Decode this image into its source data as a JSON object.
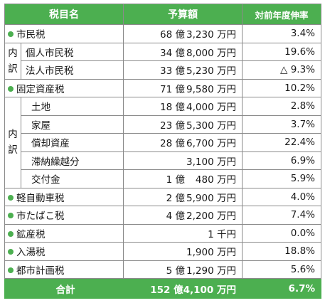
{
  "header": {
    "col_name": "税目名",
    "col_amount": "予算額",
    "col_rate": "対前年度伸率"
  },
  "inner_label": {
    "line1": "内",
    "line2": "訳"
  },
  "units": {
    "oku": "億",
    "man": "万円",
    "sen": "千円"
  },
  "rows": [
    {
      "name": "市民税",
      "oku": "68",
      "man": "3,230",
      "rate": "3.4%"
    },
    {
      "name": "個人市民税",
      "oku": "34",
      "man": "8,000",
      "rate": "19.6%"
    },
    {
      "name": "法人市民税",
      "oku": "33",
      "man": "5,230",
      "rate": "△ 9.3%"
    },
    {
      "name": "固定資産税",
      "oku": "71",
      "man": "9,580",
      "rate": "10.2%"
    },
    {
      "name": "土地",
      "oku": "18",
      "man": "4,000",
      "rate": "2.8%"
    },
    {
      "name": "家屋",
      "oku": "23",
      "man": "5,300",
      "rate": "3.7%"
    },
    {
      "name": "償却資産",
      "oku": "28",
      "man": "6,700",
      "rate": "22.4%"
    },
    {
      "name": "滞納繰越分",
      "oku": "",
      "man": "3,100",
      "rate": "6.9%"
    },
    {
      "name": "交付金",
      "oku": "1",
      "man": "480",
      "rate": "5.9%"
    },
    {
      "name": "軽自動車税",
      "oku": "2",
      "man": "5,900",
      "rate": "4.0%"
    },
    {
      "name": "市たばこ税",
      "oku": "4",
      "man": "2,200",
      "rate": "7.4%"
    },
    {
      "name": "鉱産税",
      "oku": "",
      "man": "1",
      "rate": "0.0%"
    },
    {
      "name": "入湯税",
      "oku": "",
      "man": "1,900",
      "rate": "18.8%"
    },
    {
      "name": "都市計画税",
      "oku": "5",
      "man": "1,290",
      "rate": "5.6%"
    }
  ],
  "total": {
    "name": "合計",
    "oku": "152",
    "man": "4,100",
    "rate": "6.7%"
  },
  "colors": {
    "header_green": "#4caf50",
    "bullet_green": "#4caf50",
    "border": "#8a8a8a"
  }
}
